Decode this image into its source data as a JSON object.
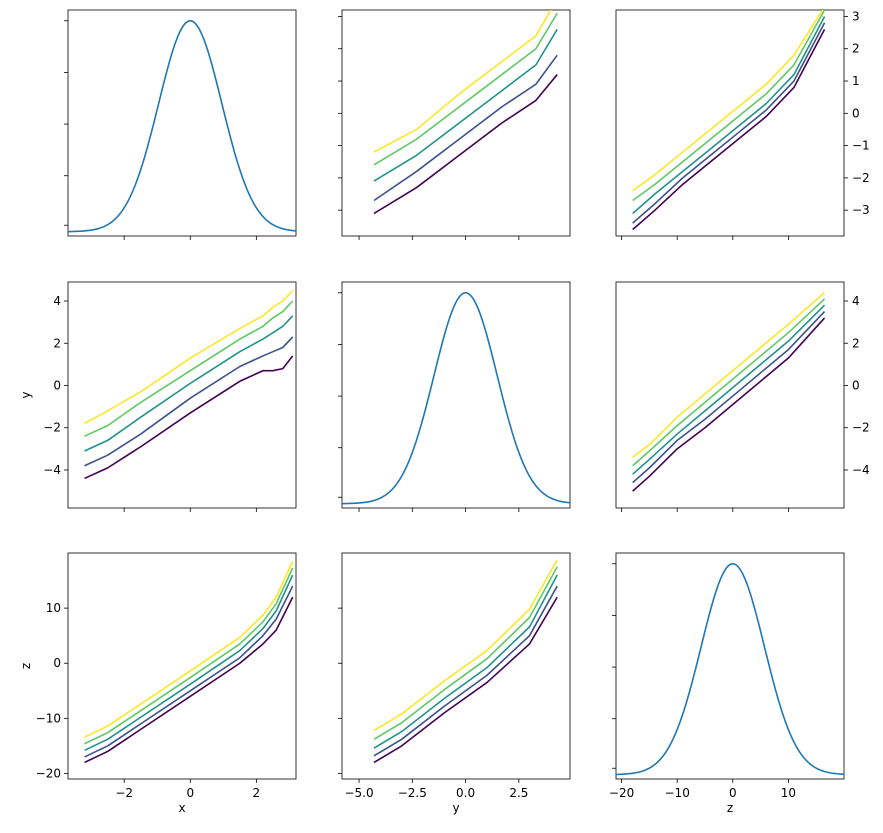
{
  "figure": {
    "background": "#ffffff"
  },
  "palette": {
    "diag": "#1f77b4",
    "curves": [
      "#440154",
      "#3b528b",
      "#21918c",
      "#5ec962",
      "#fde725"
    ]
  },
  "chart_data": [
    {
      "type": "line",
      "name": "panel-1-1",
      "curve": "gauss",
      "xlim": [
        -3.7,
        3.2
      ],
      "ylim": [
        0,
        1.05
      ],
      "xticks": [
        -2,
        0,
        2
      ],
      "xtick_labels": [],
      "yticks": [
        0.05,
        0.28,
        0.52,
        0.76,
        1.0
      ],
      "ytick_labels": [],
      "ytick_side": "left",
      "xlabel": "",
      "ylabel": ""
    },
    {
      "type": "line",
      "name": "panel-1-2",
      "curve": "lines",
      "xlim": [
        -5.8,
        4.9
      ],
      "ylim": [
        -3.8,
        3.2
      ],
      "xticks": [
        -5,
        -2.5,
        0,
        2.5
      ],
      "xtick_labels": [],
      "yticks": [
        -3,
        -2,
        -1,
        0,
        1,
        2,
        3
      ],
      "ytick_labels": [],
      "ytick_side": "left",
      "xlabel": "",
      "ylabel": "",
      "series": [
        {
          "x": [
            -4.3,
            -2.3,
            -0.3,
            1.7,
            3.3,
            4.3
          ],
          "y": [
            -3.1,
            -2.3,
            -1.3,
            -0.3,
            0.4,
            1.2
          ]
        },
        {
          "x": [
            -4.3,
            -2.3,
            -0.3,
            1.7,
            3.3,
            4.3
          ],
          "y": [
            -2.7,
            -1.8,
            -0.8,
            0.2,
            0.9,
            1.8
          ]
        },
        {
          "x": [
            -4.3,
            -2.3,
            -0.3,
            1.7,
            3.3,
            4.3
          ],
          "y": [
            -2.1,
            -1.3,
            -0.3,
            0.7,
            1.5,
            2.6
          ]
        },
        {
          "x": [
            -4.3,
            -2.3,
            -0.3,
            1.7,
            3.3,
            4.3
          ],
          "y": [
            -1.6,
            -0.8,
            0.2,
            1.2,
            2.0,
            3.1
          ]
        },
        {
          "x": [
            -4.3,
            -2.3,
            -0.3,
            1.7,
            3.3,
            4.0
          ],
          "y": [
            -1.2,
            -0.5,
            0.6,
            1.6,
            2.4,
            3.2
          ]
        }
      ]
    },
    {
      "type": "line",
      "name": "panel-1-3",
      "curve": "lines",
      "xlim": [
        -21,
        20
      ],
      "ylim": [
        -3.8,
        3.2
      ],
      "xticks": [
        -20,
        -10,
        0,
        10
      ],
      "xtick_labels": [],
      "yticks": [
        -3,
        -2,
        -1,
        0,
        1,
        2,
        3
      ],
      "ytick_labels": [
        "−3",
        "−2",
        "−1",
        "0",
        "1",
        "2",
        "3"
      ],
      "ytick_side": "right",
      "xlabel": "",
      "ylabel": "",
      "series": [
        {
          "x": [
            -18,
            -14,
            -9,
            -4,
            1,
            6,
            11,
            16.5
          ],
          "y": [
            -3.6,
            -3.0,
            -2.2,
            -1.5,
            -0.8,
            -0.1,
            0.8,
            2.6
          ]
        },
        {
          "x": [
            -18,
            -14,
            -9,
            -4,
            1,
            6,
            11,
            16.5
          ],
          "y": [
            -3.4,
            -2.8,
            -2.0,
            -1.3,
            -0.6,
            0.1,
            1.0,
            2.8
          ]
        },
        {
          "x": [
            -18,
            -14,
            -9,
            -4,
            1,
            6,
            11,
            16.5
          ],
          "y": [
            -3.1,
            -2.5,
            -1.8,
            -1.1,
            -0.4,
            0.3,
            1.2,
            3.0
          ]
        },
        {
          "x": [
            -18,
            -14,
            -9,
            -4,
            1,
            6,
            11,
            16.5
          ],
          "y": [
            -2.7,
            -2.2,
            -1.5,
            -0.8,
            -0.1,
            0.6,
            1.5,
            3.2
          ]
        },
        {
          "x": [
            -18,
            -14,
            -9,
            -4,
            1,
            6,
            11,
            16.5
          ],
          "y": [
            -2.4,
            -1.9,
            -1.2,
            -0.5,
            0.2,
            0.9,
            1.8,
            3.3
          ]
        }
      ]
    },
    {
      "type": "line",
      "name": "panel-2-1",
      "curve": "lines",
      "xlim": [
        -3.7,
        3.2
      ],
      "ylim": [
        -5.8,
        4.9
      ],
      "xticks": [
        -2,
        0,
        2
      ],
      "xtick_labels": [],
      "yticks": [
        -4,
        -2,
        0,
        2,
        4
      ],
      "ytick_labels": [
        "−4",
        "−2",
        "0",
        "2",
        "4"
      ],
      "ytick_side": "left",
      "xlabel": "",
      "ylabel": "y",
      "series": [
        {
          "x": [
            -3.2,
            -2.5,
            -1.5,
            0,
            1.5,
            2.2,
            2.5,
            2.8,
            3.1
          ],
          "y": [
            -4.4,
            -3.9,
            -2.9,
            -1.3,
            0.2,
            0.7,
            0.7,
            0.8,
            1.4
          ]
        },
        {
          "x": [
            -3.2,
            -2.5,
            -1.5,
            0,
            1.5,
            2.2,
            2.5,
            2.8,
            3.1
          ],
          "y": [
            -3.8,
            -3.3,
            -2.3,
            -0.6,
            0.9,
            1.4,
            1.6,
            1.8,
            2.3
          ]
        },
        {
          "x": [
            -3.2,
            -2.5,
            -1.5,
            0,
            1.5,
            2.2,
            2.5,
            2.8,
            3.1
          ],
          "y": [
            -3.1,
            -2.6,
            -1.5,
            0.1,
            1.6,
            2.2,
            2.5,
            2.8,
            3.3
          ]
        },
        {
          "x": [
            -3.2,
            -2.5,
            -1.5,
            0,
            1.5,
            2.2,
            2.5,
            2.8,
            3.1
          ],
          "y": [
            -2.4,
            -1.9,
            -0.8,
            0.7,
            2.2,
            2.8,
            3.2,
            3.5,
            4.0
          ]
        },
        {
          "x": [
            -3.2,
            -2.5,
            -1.5,
            0,
            1.5,
            2.2,
            2.5,
            2.8,
            3.1
          ],
          "y": [
            -1.8,
            -1.2,
            -0.3,
            1.3,
            2.7,
            3.3,
            3.7,
            4.0,
            4.5
          ]
        }
      ]
    },
    {
      "type": "line",
      "name": "panel-2-2",
      "curve": "gauss",
      "xlim": [
        -5.8,
        4.9
      ],
      "ylim": [
        0,
        1.05
      ],
      "xticks": [
        -5,
        -2.5,
        0,
        2.5
      ],
      "xtick_labels": [],
      "yticks": [
        0.05,
        0.28,
        0.52,
        0.76,
        1.0
      ],
      "ytick_labels": [],
      "ytick_side": "left",
      "xlabel": "",
      "ylabel": ""
    },
    {
      "type": "line",
      "name": "panel-2-3",
      "curve": "lines",
      "xlim": [
        -21,
        20
      ],
      "ylim": [
        -5.8,
        4.9
      ],
      "xticks": [
        -20,
        -10,
        0,
        10
      ],
      "xtick_labels": [],
      "yticks": [
        -4,
        -2,
        0,
        2,
        4
      ],
      "ytick_labels": [
        "−4",
        "−2",
        "0",
        "2",
        "4"
      ],
      "ytick_side": "right",
      "xlabel": "",
      "ylabel": "",
      "series": [
        {
          "x": [
            -18,
            -15,
            -10,
            -5,
            0,
            5,
            10,
            16.5
          ],
          "y": [
            -5.0,
            -4.3,
            -3.0,
            -2.0,
            -0.9,
            0.2,
            1.3,
            3.2
          ]
        },
        {
          "x": [
            -18,
            -15,
            -10,
            -5,
            0,
            5,
            10,
            16.5
          ],
          "y": [
            -4.6,
            -3.9,
            -2.6,
            -1.6,
            -0.5,
            0.6,
            1.7,
            3.5
          ]
        },
        {
          "x": [
            -18,
            -15,
            -10,
            -5,
            0,
            5,
            10,
            16.5
          ],
          "y": [
            -4.2,
            -3.5,
            -2.3,
            -1.2,
            -0.1,
            1.0,
            2.1,
            3.8
          ]
        },
        {
          "x": [
            -18,
            -15,
            -10,
            -5,
            0,
            5,
            10,
            16.5
          ],
          "y": [
            -3.8,
            -3.1,
            -1.9,
            -0.8,
            0.3,
            1.4,
            2.5,
            4.1
          ]
        },
        {
          "x": [
            -18,
            -15,
            -10,
            -5,
            0,
            5,
            10,
            16.5
          ],
          "y": [
            -3.4,
            -2.8,
            -1.5,
            -0.4,
            0.7,
            1.8,
            2.9,
            4.4
          ]
        }
      ]
    },
    {
      "type": "line",
      "name": "panel-3-1",
      "curve": "lines",
      "xlim": [
        -3.7,
        3.2
      ],
      "ylim": [
        -21,
        20
      ],
      "xticks": [
        -2,
        0,
        2
      ],
      "xtick_labels": [
        "−2",
        "0",
        "2"
      ],
      "yticks": [
        -20,
        -10,
        0,
        10
      ],
      "ytick_labels": [
        "−20",
        "−10",
        "0",
        "10"
      ],
      "ytick_side": "left",
      "xlabel": "x",
      "ylabel": "z",
      "series": [
        {
          "x": [
            -3.2,
            -2.5,
            -1.5,
            0,
            1.5,
            2.2,
            2.6,
            3.1
          ],
          "y": [
            -18.0,
            -16.0,
            -12.0,
            -6.0,
            0.0,
            3.5,
            6.0,
            12.0
          ]
        },
        {
          "x": [
            -3.2,
            -2.5,
            -1.5,
            0,
            1.5,
            2.2,
            2.6,
            3.1
          ],
          "y": [
            -17.0,
            -15.0,
            -11.0,
            -5.0,
            1.0,
            5.0,
            8.0,
            14.0
          ]
        },
        {
          "x": [
            -3.2,
            -2.5,
            -1.5,
            0,
            1.5,
            2.2,
            2.6,
            3.1
          ],
          "y": [
            -15.8,
            -13.8,
            -9.8,
            -3.8,
            2.3,
            6.3,
            9.5,
            16.0
          ]
        },
        {
          "x": [
            -3.2,
            -2.5,
            -1.5,
            0,
            1.5,
            2.2,
            2.6,
            3.1
          ],
          "y": [
            -14.6,
            -12.6,
            -8.6,
            -2.6,
            3.5,
            7.5,
            10.8,
            17.3
          ]
        },
        {
          "x": [
            -3.2,
            -2.5,
            -1.5,
            0,
            1.5,
            2.2,
            2.6,
            3.1
          ],
          "y": [
            -13.4,
            -11.4,
            -7.4,
            -1.4,
            4.7,
            8.7,
            12.0,
            18.5
          ]
        }
      ]
    },
    {
      "type": "line",
      "name": "panel-3-2",
      "curve": "lines",
      "xlim": [
        -5.8,
        4.9
      ],
      "ylim": [
        -21,
        20
      ],
      "xticks": [
        -5,
        -2.5,
        0,
        2.5
      ],
      "xtick_labels": [
        "−5.0",
        "−2.5",
        "0.0",
        "2.5"
      ],
      "yticks": [
        -20,
        -10,
        0,
        10
      ],
      "ytick_labels": [],
      "ytick_side": "left",
      "xlabel": "y",
      "ylabel": "",
      "series": [
        {
          "x": [
            -4.3,
            -3.0,
            -1.0,
            1.0,
            3.0,
            4.3
          ],
          "y": [
            -18.0,
            -15.0,
            -9.0,
            -3.5,
            3.5,
            12.0
          ]
        },
        {
          "x": [
            -4.3,
            -3.0,
            -1.0,
            1.0,
            3.0,
            4.3
          ],
          "y": [
            -16.8,
            -13.8,
            -7.8,
            -2.2,
            5.0,
            14.0
          ]
        },
        {
          "x": [
            -4.3,
            -3.0,
            -1.0,
            1.0,
            3.0,
            4.3
          ],
          "y": [
            -15.4,
            -12.4,
            -6.4,
            -0.8,
            6.6,
            16.0
          ]
        },
        {
          "x": [
            -4.3,
            -3.0,
            -1.0,
            1.0,
            3.0,
            4.3
          ],
          "y": [
            -13.8,
            -10.8,
            -4.8,
            0.8,
            8.3,
            17.5
          ]
        },
        {
          "x": [
            -4.3,
            -3.0,
            -1.0,
            1.0,
            3.0,
            4.3
          ],
          "y": [
            -12.2,
            -9.2,
            -3.2,
            2.3,
            9.8,
            18.8
          ]
        }
      ]
    },
    {
      "type": "line",
      "name": "panel-3-3",
      "curve": "gauss",
      "xlim": [
        -21,
        20
      ],
      "ylim": [
        0,
        1.05
      ],
      "xticks": [
        -20,
        -10,
        0,
        10
      ],
      "xtick_labels": [
        "−20",
        "−10",
        "0",
        "10"
      ],
      "yticks": [
        0.05,
        0.28,
        0.52,
        0.76,
        1.0
      ],
      "ytick_labels": [],
      "ytick_side": "left",
      "xlabel": "z",
      "ylabel": ""
    }
  ]
}
